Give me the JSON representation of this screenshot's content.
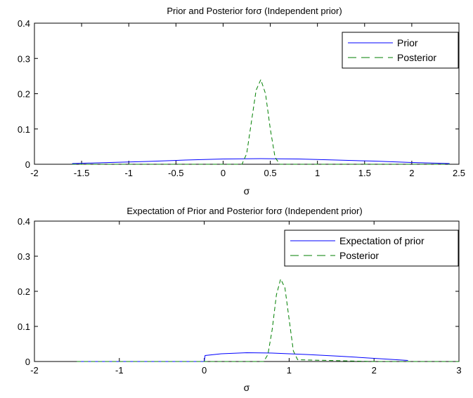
{
  "chart_data": [
    {
      "type": "line",
      "title": "Prior and Posterior forσ (Independent prior)",
      "xlabel": "σ",
      "ylabel": "",
      "xlim": [
        -2,
        2.5
      ],
      "ylim": [
        0,
        0.4
      ],
      "xticks": [
        -2,
        -1.5,
        -1,
        -0.5,
        0,
        0.5,
        1,
        1.5,
        2,
        2.5
      ],
      "yticks": [
        0,
        0.1,
        0.2,
        0.3,
        0.4
      ],
      "xtick_labels": [
        "-2",
        "-1.5",
        "-1",
        "-0.5",
        "0",
        "0.5",
        "1",
        "1.5",
        "2",
        "2.5"
      ],
      "ytick_labels": [
        "0",
        "0.1",
        "0.2",
        "0.3",
        "0.4"
      ],
      "legend_position": "top-right",
      "series": [
        {
          "name": "Prior",
          "color": "#0000ff",
          "style": "solid",
          "x": [
            -1.6,
            -1.2,
            -0.8,
            -0.4,
            0,
            0.4,
            0.8,
            1.2,
            1.6,
            2.0,
            2.4
          ],
          "y": [
            0.002,
            0.005,
            0.008,
            0.012,
            0.015,
            0.016,
            0.015,
            0.012,
            0.009,
            0.005,
            0.002
          ]
        },
        {
          "name": "Posterior",
          "color": "#007f00",
          "style": "dashed",
          "x": [
            -1.6,
            0.0,
            0.2,
            0.25,
            0.3,
            0.35,
            0.4,
            0.45,
            0.5,
            0.55,
            0.6,
            1.0,
            2.4
          ],
          "y": [
            0,
            0,
            0,
            0.03,
            0.12,
            0.21,
            0.24,
            0.2,
            0.1,
            0.02,
            0,
            0,
            0
          ]
        }
      ]
    },
    {
      "type": "line",
      "title": "Expectation of Prior and Posterior forσ (Independent prior)",
      "xlabel": "σ",
      "ylabel": "",
      "xlim": [
        -2,
        3
      ],
      "ylim": [
        0,
        0.4
      ],
      "xticks": [
        -2,
        -1,
        0,
        1,
        2,
        3
      ],
      "yticks": [
        0,
        0.1,
        0.2,
        0.3,
        0.4
      ],
      "xtick_labels": [
        "-2",
        "-1",
        "0",
        "1",
        "2",
        "3"
      ],
      "ytick_labels": [
        "0",
        "0.1",
        "0.2",
        "0.3",
        "0.4"
      ],
      "legend_position": "top-right",
      "series": [
        {
          "name": "Expectation of prior",
          "color": "#0000ff",
          "style": "solid",
          "x": [
            -1.5,
            -0.5,
            0,
            0.01,
            0.2,
            0.5,
            0.8,
            1.2,
            1.6,
            2.0,
            2.4
          ],
          "y": [
            0,
            0,
            0,
            0.017,
            0.022,
            0.025,
            0.024,
            0.02,
            0.015,
            0.009,
            0.003
          ]
        },
        {
          "name": "Posterior",
          "color": "#007f00",
          "style": "dashed",
          "x": [
            -1.5,
            0.5,
            0.7,
            0.75,
            0.8,
            0.85,
            0.9,
            0.95,
            1.0,
            1.05,
            1.1,
            2.0,
            3.0
          ],
          "y": [
            0,
            0,
            0,
            0.02,
            0.09,
            0.19,
            0.235,
            0.21,
            0.12,
            0.03,
            0.005,
            0,
            0
          ]
        }
      ]
    }
  ]
}
